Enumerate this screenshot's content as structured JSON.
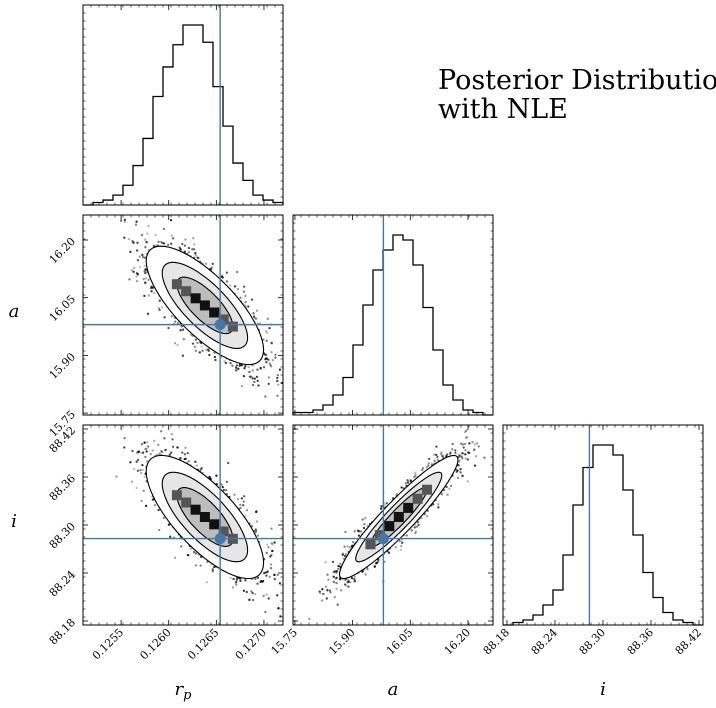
{
  "figure": {
    "title_line1": "Posterior Distribution",
    "title_line2": "with NLE",
    "truth_color": "#4477aa",
    "hist_color": "#000000"
  },
  "chart_data": {
    "type": "corner",
    "parameters": [
      {
        "key": "rp",
        "label_base": "r",
        "label_sub": "p",
        "range": [
          0.1251,
          0.1272
        ],
        "ticks": [
          0.1255,
          0.126,
          0.1265,
          0.127
        ],
        "tick_labels": [
          "0.1255",
          "0.1260",
          "0.1265",
          "0.1270"
        ],
        "truth": 0.12654
      },
      {
        "key": "a",
        "label": "a",
        "range": [
          15.745,
          16.265
        ],
        "ticks": [
          15.75,
          15.9,
          16.05,
          16.2
        ],
        "tick_labels": [
          "15.75",
          "15.90",
          "16.05",
          "16.20"
        ],
        "truth": 15.98
      },
      {
        "key": "i",
        "label": "i",
        "range": [
          88.175,
          88.425
        ],
        "ticks": [
          88.18,
          88.24,
          88.3,
          88.36,
          88.42
        ],
        "tick_labels": [
          "88.18",
          "88.24",
          "88.30",
          "88.36",
          "88.42"
        ],
        "truth": 88.283
      }
    ],
    "histograms": [
      {
        "param": "rp",
        "counts": [
          0,
          1,
          2,
          4,
          8,
          16,
          27,
          44,
          56,
          65,
          73,
          73,
          66,
          48,
          32,
          17,
          10,
          4,
          2,
          1
        ]
      },
      {
        "param": "a",
        "counts": [
          1,
          1,
          2,
          4,
          8,
          15,
          28,
          44,
          58,
          66,
          72,
          70,
          60,
          43,
          26,
          12,
          6,
          2,
          1,
          0
        ]
      },
      {
        "param": "i",
        "counts": [
          0,
          1,
          2,
          4,
          8,
          14,
          28,
          48,
          63,
          72,
          72,
          68,
          54,
          36,
          21,
          11,
          5,
          2,
          1,
          0
        ]
      }
    ],
    "pairs": [
      {
        "x": "rp",
        "y": "a",
        "center": [
          0.12638,
          16.03
        ],
        "sd": [
          0.00028,
          0.07
        ],
        "corr": -0.75
      },
      {
        "x": "rp",
        "y": "i",
        "center": [
          0.12638,
          88.31
        ],
        "sd": [
          0.00028,
          0.035
        ],
        "corr": -0.74
      },
      {
        "x": "a",
        "y": "i",
        "center": [
          16.02,
          88.31
        ],
        "sd": [
          0.07,
          0.035
        ],
        "corr": 0.93
      }
    ]
  }
}
